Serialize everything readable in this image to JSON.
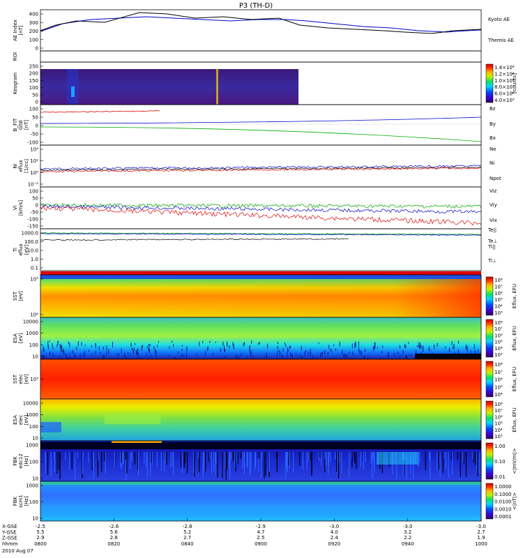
{
  "title": "P3 (TH-D)",
  "chart_data": {
    "type": "line",
    "title": "P3 (TH-D)",
    "panels": [
      {
        "ylabel": [
          "AE Index",
          "[nT]"
        ],
        "ticks": [
          "400",
          "300",
          "200",
          "100",
          "0"
        ],
        "kind": "ae",
        "series": [
          {
            "name": "Kyoto AE",
            "color": "#0000cc"
          },
          {
            "name": "Themis AE",
            "color": "#000000"
          }
        ]
      },
      {
        "ylabel": [
          "ROI"
        ],
        "ticks": [],
        "kind": "roi"
      },
      {
        "ylabel": [
          "Keogram"
        ],
        "ticks": [
          "250",
          "200",
          "150",
          "100",
          "50",
          "0"
        ],
        "kind": "keogram",
        "colorbar": {
          "labels": [
            "1.4×10⁴",
            "1.2×10⁴",
            "1.0×10⁴",
            "8.0×10³",
            "6.0×10³",
            "4.0×10³"
          ],
          "unit": "[counts]"
        }
      },
      {
        "ylabel": [
          "B_FIT",
          "GSE",
          "[nT]"
        ],
        "ticks": [
          "100",
          "50",
          "0",
          "-50",
          "-100"
        ],
        "kind": "bfield",
        "series": [
          {
            "name": "Bz",
            "color": "#dd0000"
          },
          {
            "name": "By",
            "color": "#00aa00"
          },
          {
            "name": "Bx",
            "color": "#0000cc"
          }
        ]
      },
      {
        "ylabel": [
          "Ni",
          "eflux",
          "[1/cc]"
        ],
        "ticks": [
          "10⁴",
          "10²",
          "10⁰",
          "10⁻²"
        ],
        "kind": "density",
        "series": [
          {
            "name": "Ne",
            "color": "#dd0000"
          },
          {
            "name": "Ni",
            "color": "#000000"
          },
          {
            "name": "Npot",
            "color": "#0000cc"
          }
        ]
      },
      {
        "ylabel": [
          "Vi",
          "[km/s]"
        ],
        "ticks": [
          "100",
          "50",
          "0",
          "-50",
          "-100",
          "-150"
        ],
        "kind": "velocity",
        "series": [
          {
            "name": "Viz",
            "color": "#dd0000"
          },
          {
            "name": "Viy",
            "color": "#00aa00"
          },
          {
            "name": "Vix",
            "color": "#0000cc"
          }
        ]
      },
      {
        "ylabel": [
          "Ti",
          "eflux",
          "[eV]"
        ],
        "ticks": [
          "1000.0",
          "100.0",
          "10.0",
          "1.0",
          "0.1"
        ],
        "kind": "temp",
        "series": [
          {
            "name": "Te||",
            "color": "#000000"
          },
          {
            "name": "Te⊥",
            "color": "#dd0000"
          },
          {
            "name": "Ti||",
            "color": "#00aa00"
          },
          {
            "name": "Ti⊥",
            "color": "#0000cc"
          }
        ]
      },
      {
        "ylabel": [
          "SST",
          "[eV]"
        ],
        "ticks": [
          "10⁵",
          "10⁴"
        ],
        "kind": "spec_sst_i",
        "colorbar": {
          "labels": [
            "10⁸",
            "10⁷",
            "10⁶",
            "10⁵",
            "10⁴",
            "10³"
          ],
          "unit": "Eflux, EFU"
        }
      },
      {
        "ylabel": [
          "ESA",
          "[eV]"
        ],
        "ticks": [
          "10000",
          "1000",
          "100",
          "10"
        ],
        "kind": "spec_esa_i",
        "colorbar": {
          "labels": [
            "10⁸",
            "10⁷",
            "10⁶",
            "10⁵",
            "10⁴",
            "10³"
          ],
          "unit": "Eflux, EFU"
        }
      },
      {
        "ylabel": [
          "SST",
          "elec",
          "[eV]"
        ],
        "ticks": [
          "10⁵"
        ],
        "kind": "spec_sst_e",
        "colorbar": {
          "labels": [
            "10⁸",
            "10⁷",
            "10⁶",
            "10⁵",
            "10⁴"
          ],
          "unit": "Eflux, EFU"
        }
      },
      {
        "ylabel": [
          "ESA",
          "elec",
          "[eV]"
        ],
        "ticks": [
          "10000",
          "1000",
          "100",
          "10"
        ],
        "kind": "spec_esa_e",
        "colorbar": {
          "labels": [
            "10⁸",
            "10⁷",
            "10⁶",
            "10⁵",
            "10⁴",
            "10³"
          ],
          "unit": "Eflux, EFU"
        }
      },
      {
        "ylabel": [
          "FBK",
          "edc12",
          "[Hz]"
        ],
        "ticks": [
          "1000",
          "100",
          "10"
        ],
        "kind": "fbk_e",
        "colorbar": {
          "labels": [
            "1.00",
            "0.10",
            "0.01"
          ],
          "unit": "<|mV/m|>"
        }
      },
      {
        "ylabel": [
          "FBK",
          "scm1",
          "[Hz]"
        ],
        "ticks": [
          "1000",
          "100",
          "10"
        ],
        "kind": "fbk_b",
        "colorbar": {
          "labels": [
            "1.0000",
            "0.1000",
            "0.0100",
            "0.0010",
            "0.0001"
          ],
          "unit": "<|nT|>"
        }
      }
    ],
    "xaxis": {
      "labels": [
        "X-GSE",
        "Y-GSE",
        "Z-GSE",
        "hhmm",
        "2010 Aug 07"
      ],
      "ticks": [
        {
          "x": "-2.5",
          "y": "5.5",
          "z": "2.9",
          "t": "0800"
        },
        {
          "x": "-2.6",
          "y": "5.6",
          "z": "2.8",
          "t": "0820"
        },
        {
          "x": "-2.8",
          "y": "5.2",
          "z": "2.7",
          "t": "0840"
        },
        {
          "x": "-2.9",
          "y": "4.7",
          "z": "2.5",
          "t": "0900"
        },
        {
          "x": "-3.0",
          "y": "4.0",
          "z": "2.4",
          "t": "0920"
        },
        {
          "x": "-3.0",
          "y": "3.2",
          "z": "2.2",
          "t": "0940"
        },
        {
          "x": "-3.0",
          "y": "2.7",
          "z": "1.9",
          "t": "1000"
        }
      ]
    }
  }
}
